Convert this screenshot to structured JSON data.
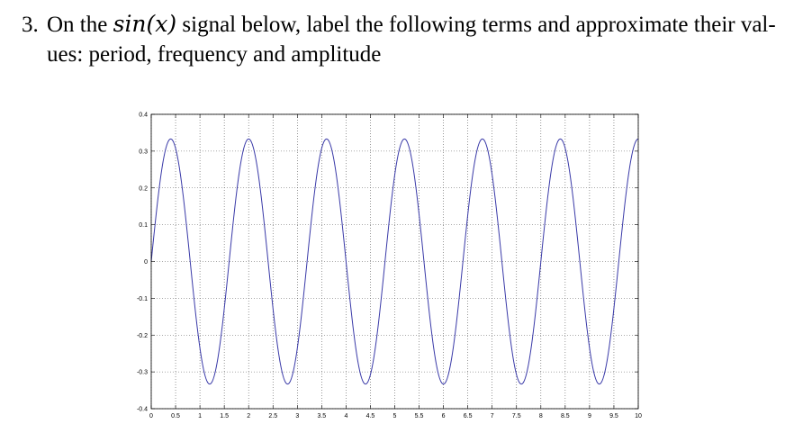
{
  "question": {
    "number": "3.",
    "text_before": "On the",
    "math": "sin(x)",
    "text_after": "signal below, label the following terms and approximate their val-",
    "line2": "ues: period, frequency and amplitude"
  },
  "chart_data": {
    "type": "line",
    "title": "",
    "xlabel": "",
    "ylabel": "",
    "xlim": [
      0,
      10
    ],
    "ylim": [
      -0.4,
      0.4
    ],
    "grid": true,
    "x_ticks": [
      "0",
      "0.5",
      "1",
      "1.5",
      "2",
      "2.5",
      "3",
      "3.5",
      "4",
      "4.5",
      "5",
      "5.5",
      "6",
      "6.5",
      "7",
      "7.5",
      "8",
      "8.5",
      "9",
      "9.5",
      "10"
    ],
    "y_ticks": [
      "0.4",
      "0.3",
      "0.2",
      "0.1",
      "0",
      "-0.1",
      "-0.2",
      "-0.3",
      "-0.4"
    ],
    "series": [
      {
        "amplitude": 0.333,
        "period": 1.6,
        "phase": 0,
        "x_start": 0,
        "x_end": 10
      }
    ],
    "colors": {
      "line": "#3a3aa8",
      "axis": "#000000",
      "grid": "#555555"
    }
  }
}
